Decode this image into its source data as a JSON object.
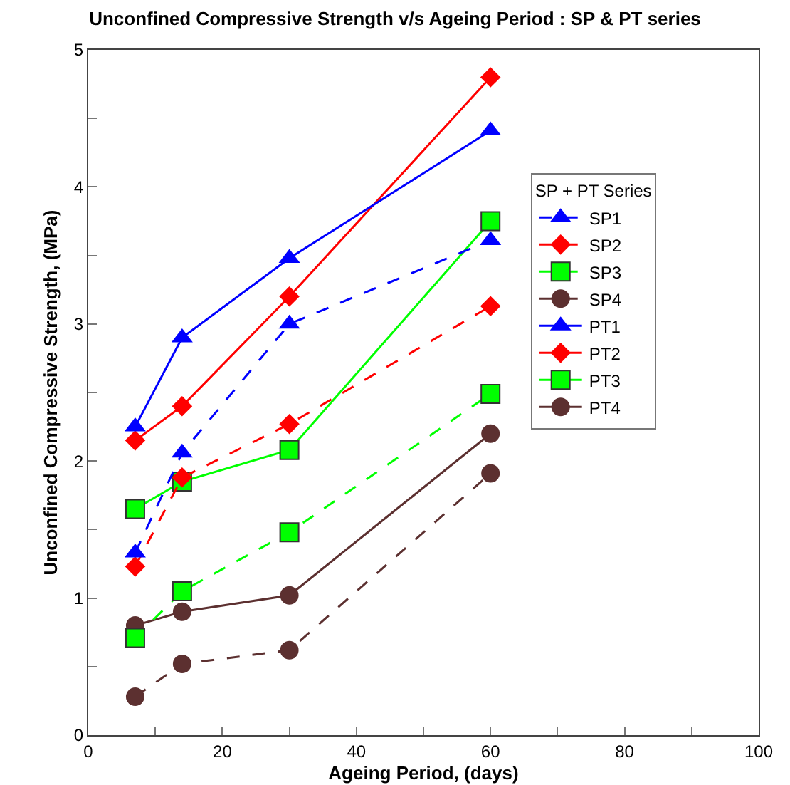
{
  "chart_data": {
    "type": "line",
    "title": "Unconfined Compressive Strength v/s Ageing Period : SP & PT series",
    "xlabel": "Ageing Period, (days)",
    "ylabel": "Unconfined Compressive Strength, (MPa)",
    "legend_title": "SP + PT Series",
    "legend": "top right",
    "grid": false,
    "x": [
      7,
      14,
      30,
      60
    ],
    "xlim": [
      0,
      100
    ],
    "xticks": [
      0,
      {
        "value": 10,
        "label": null
      },
      20,
      {
        "value": 30,
        "label": null
      },
      40,
      {
        "value": 50,
        "label": null
      },
      60,
      {
        "value": 70,
        "label": null
      },
      80,
      {
        "value": 90,
        "label": null
      },
      100
    ],
    "ylim": [
      0,
      5
    ],
    "yticks": [
      0,
      {
        "value": 0.5,
        "label": null
      },
      1,
      {
        "value": 1.5,
        "label": null
      },
      2,
      {
        "value": 2.5,
        "label": null
      },
      3,
      {
        "value": 3.5,
        "label": null
      },
      4,
      {
        "value": 4.5,
        "label": null
      },
      5
    ],
    "series": [
      {
        "name": "SP1",
        "color": "#0000ff",
        "marker": "triangle",
        "line_style": "dashed",
        "values": [
          1.33,
          2.06,
          3.0,
          3.61
        ]
      },
      {
        "name": "SP2",
        "color": "#ff0000",
        "marker": "diamond",
        "line_style": "dashed",
        "values": [
          1.23,
          1.88,
          2.27,
          3.13
        ]
      },
      {
        "name": "SP3",
        "color": "#00ff00",
        "marker": "square",
        "line_style": "dashed",
        "values": [
          0.71,
          1.05,
          1.48,
          2.49
        ]
      },
      {
        "name": "SP4",
        "color": "#5c3030",
        "marker": "circle",
        "line_style": "dashed",
        "values": [
          0.28,
          0.52,
          0.62,
          1.91
        ]
      },
      {
        "name": "PT1",
        "color": "#0000ff",
        "marker": "triangle",
        "line_style": "solid",
        "values": [
          2.25,
          2.9,
          3.48,
          4.41
        ]
      },
      {
        "name": "PT2",
        "color": "#ff0000",
        "marker": "diamond",
        "line_style": "solid",
        "values": [
          2.15,
          2.4,
          3.2,
          4.8
        ]
      },
      {
        "name": "PT3",
        "color": "#00ff00",
        "marker": "square",
        "line_style": "solid",
        "values": [
          1.65,
          1.85,
          2.08,
          3.75
        ]
      },
      {
        "name": "PT4",
        "color": "#5c3030",
        "marker": "circle",
        "line_style": "solid",
        "values": [
          0.8,
          0.9,
          1.02,
          2.2
        ]
      }
    ]
  }
}
